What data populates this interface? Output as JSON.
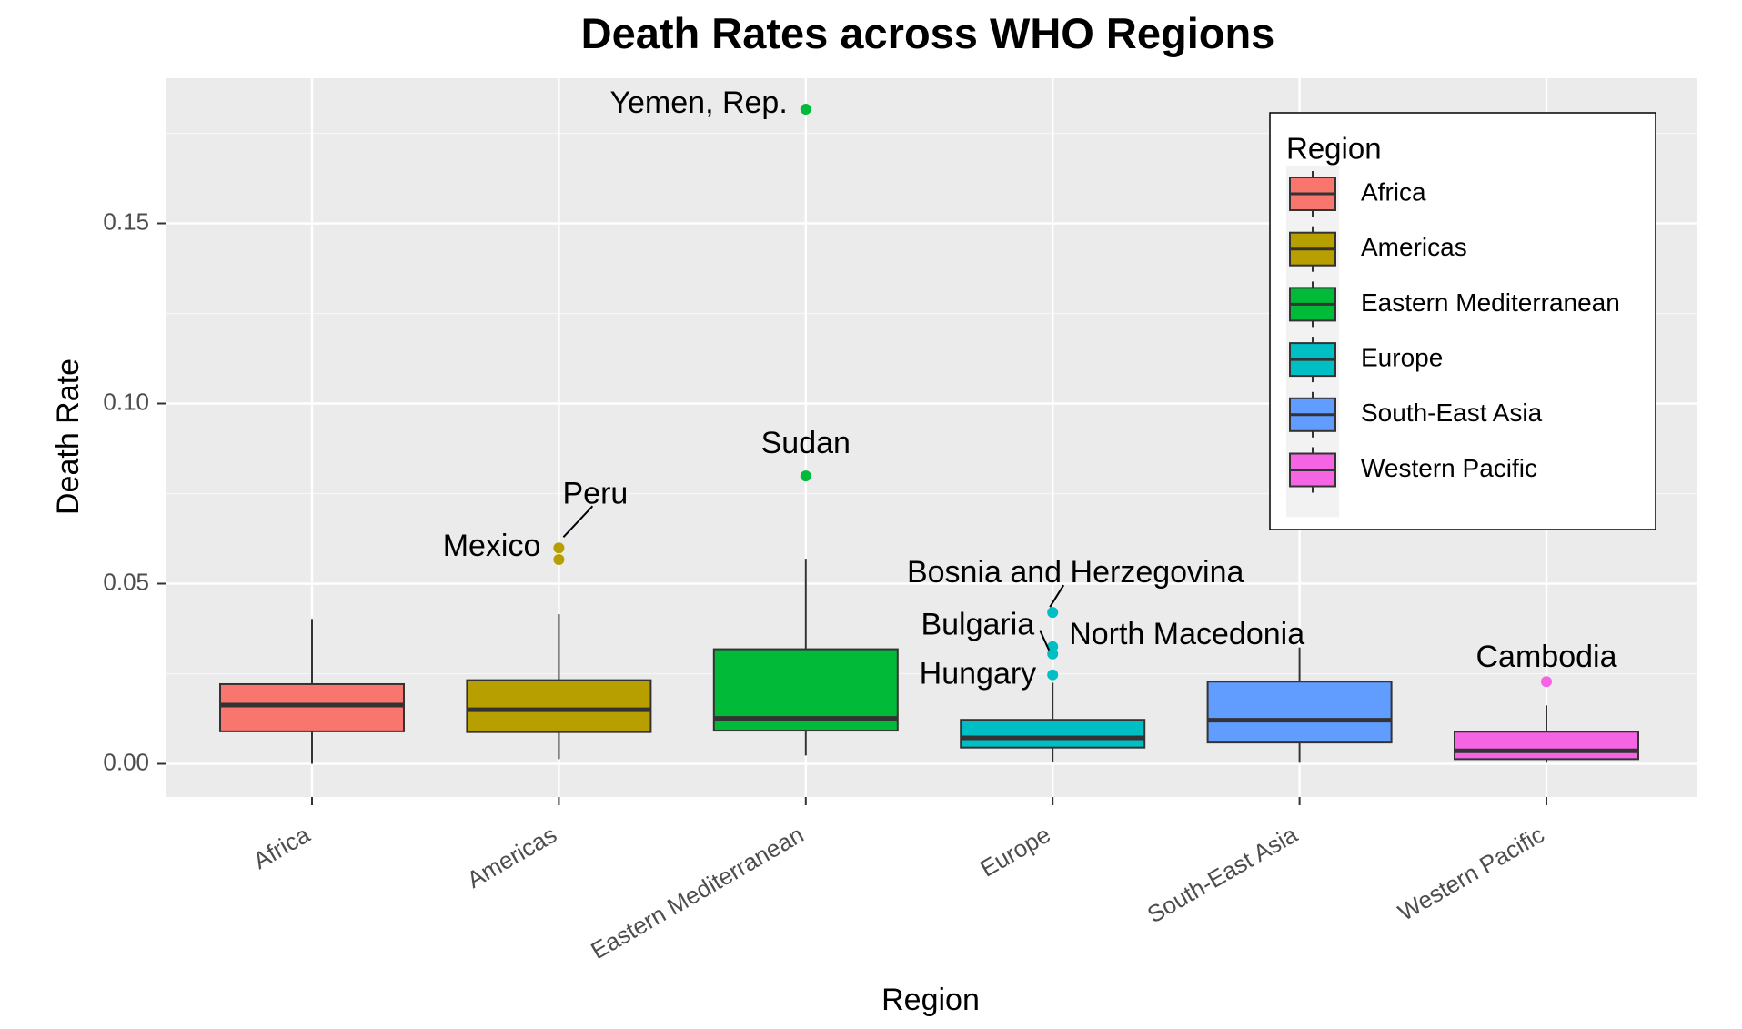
{
  "chart_data": {
    "type": "box",
    "title": "Death Rates across WHO Regions",
    "xlabel": "Region",
    "ylabel": "Death Rate",
    "ylim": [
      -0.008,
      0.19
    ],
    "yticks": [
      0.0,
      0.05,
      0.1,
      0.15
    ],
    "ytick_labels": [
      "0.00",
      "0.05",
      "0.10",
      "0.15"
    ],
    "categories": [
      "Africa",
      "Americas",
      "Eastern Mediterranean",
      "Europe",
      "South-East Asia",
      "Western Pacific"
    ],
    "boxes": [
      {
        "category": "Africa",
        "color": "#F8766D",
        "lower_whisker": 0.0,
        "q1": 0.009,
        "median": 0.0163,
        "q3": 0.0221,
        "upper_whisker": 0.0402,
        "outliers": []
      },
      {
        "category": "Americas",
        "color": "#B79F00",
        "lower_whisker": 0.0013,
        "q1": 0.0088,
        "median": 0.015,
        "q3": 0.0232,
        "upper_whisker": 0.0415,
        "outliers": [
          {
            "value": 0.0599,
            "label": "Peru"
          },
          {
            "value": 0.0567,
            "label": "Mexico"
          }
        ]
      },
      {
        "category": "Eastern Mediterranean",
        "color": "#00BA38",
        "lower_whisker": 0.0023,
        "q1": 0.0092,
        "median": 0.0126,
        "q3": 0.0318,
        "upper_whisker": 0.0569,
        "outliers": [
          {
            "value": 0.1817,
            "label": "Yemen, Rep."
          },
          {
            "value": 0.0799,
            "label": "Sudan"
          }
        ]
      },
      {
        "category": "Europe",
        "color": "#00BFC4",
        "lower_whisker": 0.0006,
        "q1": 0.0045,
        "median": 0.0072,
        "q3": 0.0122,
        "upper_whisker": 0.0225,
        "outliers": [
          {
            "value": 0.042,
            "label": "Bosnia and Herzegovina"
          },
          {
            "value": 0.0325,
            "label": "North Macedonia"
          },
          {
            "value": 0.0305,
            "label": "Bulgaria"
          },
          {
            "value": 0.0247,
            "label": "Hungary"
          }
        ]
      },
      {
        "category": "South-East Asia",
        "color": "#619CFF",
        "lower_whisker": 0.0003,
        "q1": 0.0059,
        "median": 0.0121,
        "q3": 0.0228,
        "upper_whisker": 0.0323,
        "outliers": []
      },
      {
        "category": "Western Pacific",
        "color": "#F564E3",
        "lower_whisker": 0.0003,
        "q1": 0.0013,
        "median": 0.0036,
        "q3": 0.0089,
        "upper_whisker": 0.0162,
        "outliers": [
          {
            "value": 0.0228,
            "label": "Cambodia"
          }
        ]
      }
    ],
    "legend": {
      "title": "Region",
      "position": "top-right",
      "entries": [
        "Africa",
        "Americas",
        "Eastern Mediterranean",
        "Europe",
        "South-East Asia",
        "Western Pacific"
      ]
    },
    "grid": true,
    "panel_background": "#EBEBEB",
    "grid_color": "#FFFFFF"
  }
}
